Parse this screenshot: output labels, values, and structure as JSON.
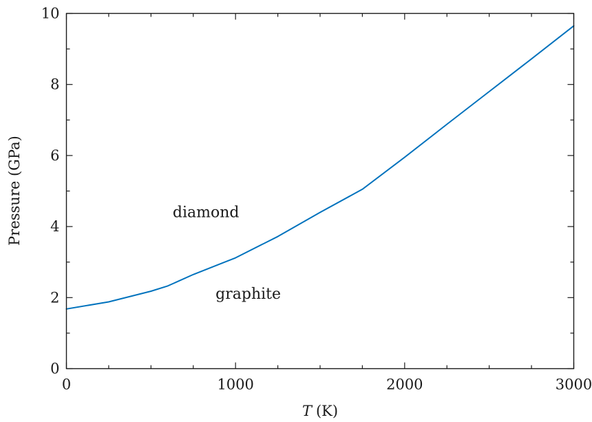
{
  "chart_data": {
    "type": "line",
    "xlabel_var": "T",
    "xlabel_unit": "(K)",
    "ylabel": "Pressure (GPa)",
    "xlim": [
      0,
      3000
    ],
    "ylim": [
      0,
      10
    ],
    "xticks": [
      0,
      1000,
      2000,
      3000
    ],
    "yticks": [
      0,
      2,
      4,
      6,
      8,
      10
    ],
    "x_minor_step": 250,
    "y_minor_step": 1,
    "grid": false,
    "series": [
      {
        "color": "#0072BD",
        "x": [
          0,
          250,
          500,
          600,
          750,
          1000,
          1250,
          1500,
          1750,
          2000,
          2250,
          2500,
          2750,
          3000
        ],
        "y": [
          1.68,
          1.88,
          2.18,
          2.33,
          2.65,
          3.12,
          3.72,
          4.4,
          5.05,
          5.95,
          6.88,
          7.8,
          8.72,
          9.65
        ]
      }
    ],
    "annotations": [
      {
        "text": "diamond",
        "x": 825,
        "y": 4.4
      },
      {
        "text": "graphite",
        "x": 1075,
        "y": 2.1
      }
    ]
  }
}
